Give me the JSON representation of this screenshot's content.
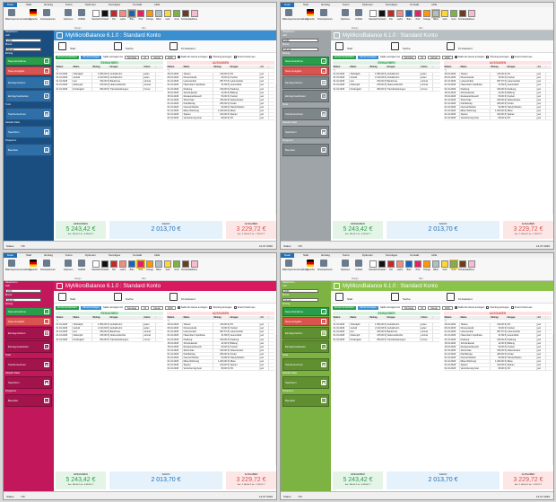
{
  "menu": [
    "Datei",
    "Start",
    "Eintrag",
    "Konto",
    "Optionen",
    "Sonstiges",
    "Kontakt",
    "Hilfe"
  ],
  "ribbon_buttons": [
    {
      "label": "Bilanzsperrenverwaltung",
      "icon": "printer-icon"
    },
    {
      "label": "Sprache",
      "icon": "flag-de-icon"
    },
    {
      "label": "Druckoptionen",
      "icon": "printer-settings-icon"
    },
    {
      "label": "Optionen",
      "icon": "gear-icon"
    },
    {
      "label": "Vollbild",
      "icon": "fullscreen-icon"
    }
  ],
  "ribbon_groups": [
    "Design",
    "Skin"
  ],
  "swatches": [
    {
      "label": "Standard",
      "color": "#ffffff"
    },
    {
      "label": "Schwarz",
      "color": "#111111"
    },
    {
      "label": "Rot",
      "color": "#c62828"
    },
    {
      "label": "Lachs",
      "color": "#f28b82"
    },
    {
      "label": "Blau",
      "color": "#1565c0"
    },
    {
      "label": "Pink",
      "color": "#e91e63"
    },
    {
      "label": "Orange",
      "color": "#ff9800"
    },
    {
      "label": "Silber",
      "color": "#b0bec5"
    },
    {
      "label": "Gelb",
      "color": "#fdd835"
    },
    {
      "label": "Grün",
      "color": "#7cb342"
    },
    {
      "label": "Schokolade",
      "color": "#6d3b1f"
    },
    {
      "label": "Rosa",
      "color": "#f8bbd0"
    }
  ],
  "sidebar": {
    "header": "Hauptmenu",
    "year_label": "Jahr",
    "year": "2026",
    "month_label": "Monat",
    "month": "Januar",
    "section_entry": "Eintrag",
    "btn_income": "Neue Einnahme",
    "btn_expense": "Neue Ausgabe",
    "btn_delete": "Eintrag löschen",
    "btn_edit": "Eintrag bearbeiten",
    "section_tools": "Tools",
    "btn_calc": "Taschenrechner",
    "section_data": "Aktuelle Datei",
    "btn_save": "Speichern",
    "section_program": "Programm",
    "btn_exit": "Beenden"
  },
  "app_title": "MyMicroBalance 6.1.0  :  Standard Konto",
  "nav": [
    "Start",
    "Suche",
    "KI Assistent"
  ],
  "filter": {
    "btn_month": "Einzelmonatsbilanz",
    "btn_period": "Monat Anzeigen",
    "range_label": "Saldo anzeigen bis",
    "from": "Samstag",
    "day": "31",
    "month": "Januar",
    "year": "2026",
    "chk1": "Saldo bis Heute anzeigen",
    "chk2": "Übertrag anzeigen",
    "chk3": "Smart Check aus"
  },
  "headings": {
    "income": "EINNAHMEN",
    "expense": "AUSGABEN"
  },
  "income_cols": [
    "Datum",
    "Name",
    "Betrag",
    "Gruppe",
    "Interv."
  ],
  "expense_cols": [
    "Datum",
    "Name",
    "Betrag",
    "Gruppe",
    "int"
  ],
  "income_rows": [
    [
      "01.01.2026",
      "Teilzeitjob",
      "1.650,00 €",
      "Gehalt/Lohn",
      "jeden"
    ],
    [
      "01.01.2026",
      "Gehalt",
      "2.123,93 €",
      "Gehalt/Lohn",
      "jeden"
    ],
    [
      "01.01.2026",
      "test",
      "150,00 €",
      "Bankzinse",
      "einmal"
    ],
    [
      "01.01.2026",
      "Nebenjob",
      "215,00 €",
      "Nebeneinkünfte",
      "einmal"
    ],
    [
      "01.01.2026",
      "Kindergeld",
      "250,00 €",
      "Transferleistungen",
      "immer"
    ]
  ],
  "expense_rows": [
    [
      "26.01.2026",
      "Tanken",
      "130,00 €",
      "Kfz",
      "jed"
    ],
    [
      "06.01.2026",
      "Fitnessstudio",
      "30,00 €",
      "Freizeit",
      "jed"
    ],
    [
      "01.01.2026",
      "Lebensmittel",
      "657,57 €",
      "Lebensmittel",
      "jed"
    ],
    [
      "01.01.2026",
      "Hausmittel / Apotheke",
      "31,69 €",
      "Gesundheit",
      "jed"
    ],
    [
      "01.01.2026",
      "Kleidung",
      "150,00 €",
      "Kleidung",
      "jed"
    ],
    [
      "15.01.2026",
      "Schulmaterial",
      "22,00 €",
      "Bildung",
      "jed"
    ],
    [
      "15.01.2026",
      "Restaurantbesuch",
      "50,00 €",
      "Freizeit",
      "jed"
    ],
    [
      "01.01.2026",
      "Strom/Gas",
      "150,00 €",
      "Nebenkosten",
      "jed"
    ],
    [
      "01.01.2026",
      "Kita Beitrag",
      "260,00 €",
      "Kinder",
      "jed"
    ],
    [
      "01.01.2026",
      "Internet/Telefon",
      "64,99 €",
      "Handy/Telefon",
      "jed"
    ],
    [
      "01.01.2026",
      "Miete Wohnung",
      "1.200,00 €",
      "Miete",
      "jed"
    ],
    [
      "01.01.2026",
      "Sparen",
      "100,00 €",
      "Sparen",
      "jed"
    ],
    [
      "01.01.2026",
      "Versicherung Auto",
      "89,00 €",
      "Kfz",
      "jed"
    ]
  ],
  "totals": {
    "income_cap": "EINNAHMEN",
    "income": "5 243,42 €",
    "income_sub": "Sol.: 590,00 €      Ist.: 4.653,42 €",
    "balance_cap": "SALDO",
    "balance": "2 013,70 €",
    "expense_cap": "AUSGABEN",
    "expense": "3 229,72 €",
    "expense_sub": "Sol.: 2.100,00 €    Ist.: 1.129,72 €"
  },
  "status": {
    "label": "Status",
    "value": "OK",
    "date": "12.07.2026"
  },
  "themes": [
    {
      "name": "Blau",
      "accent": "#1e6fb8",
      "sidebar": "#1b4e80",
      "title": "#3a8fd1",
      "btn": "#2f6fa8",
      "sel": 4
    },
    {
      "name": "Silber",
      "accent": "#1e6fb8",
      "sidebar": "#9ea4a8",
      "title": "#b8c0c4",
      "btn": "#7f868a",
      "sel": 7
    },
    {
      "name": "Pink",
      "accent": "#1e6fb8",
      "sidebar": "#c2185b",
      "title": "#d81b60",
      "btn": "#a3134c",
      "sel": 5
    },
    {
      "name": "Grün",
      "accent": "#1e6fb8",
      "sidebar": "#7cb342",
      "title": "#8bc34a",
      "btn": "#5f8f30",
      "sel": 9
    }
  ]
}
